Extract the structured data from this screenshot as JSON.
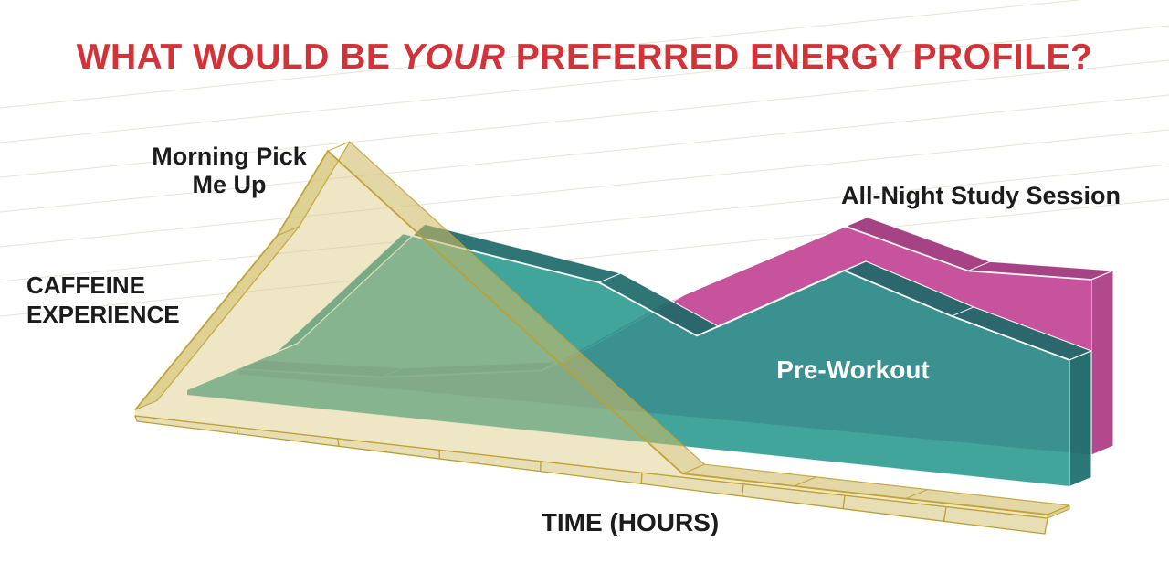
{
  "title": {
    "pre": "WHAT WOULD BE ",
    "emphasis": "YOUR",
    "post": " PREFERRED ENERGY PROFILE?",
    "color": "#d23338"
  },
  "labels": {
    "y_axis": {
      "line1": "CAFFEINE",
      "line2": "EXPERIENCE"
    },
    "x_axis": "TIME (HOURS)",
    "series_morning": {
      "line1": "Morning Pick",
      "line2": "Me Up"
    },
    "series_preworkout": "Pre-Workout",
    "series_allnight": "All-Night Study Session"
  },
  "chart_data": {
    "type": "area",
    "style": "3d-ribbon",
    "title": "WHAT WOULD BE YOUR PREFERRED ENERGY PROFILE?",
    "xlabel": "TIME (HOURS)",
    "ylabel": "CAFFEINE EXPERIENCE",
    "x_unit": "hours",
    "x_range": [
      0,
      9
    ],
    "y_range": [
      0,
      1
    ],
    "x_tick_labels_shown": false,
    "y_tick_labels_shown": false,
    "grid": "faint back-wall lines",
    "legend_position": "labels-on-chart",
    "floor": {
      "fill": "rgba(213,194,120,0.55)",
      "stroke": "#bda02f",
      "ticks": [
        1,
        2,
        3,
        4,
        5,
        6,
        7,
        8
      ]
    },
    "series": [
      {
        "name": "Morning Pick Me Up",
        "depth": 0,
        "colors": {
          "front": "rgba(218,200,126,0.45)",
          "top": "rgba(207,186,102,0.58)",
          "cap": "rgba(201,179,94,0.65)",
          "stroke": "#bda02f"
        },
        "points": [
          [
            0,
            0.02
          ],
          [
            1.4,
            0.65
          ],
          [
            1.9,
            0.95
          ],
          [
            4.2,
            0.33
          ],
          [
            5.4,
            0.012
          ],
          [
            6.5,
            0.012
          ],
          [
            7.6,
            0.012
          ],
          [
            9,
            0.012
          ]
        ]
      },
      {
        "name": "Pre-Workout",
        "depth": 1,
        "colors": {
          "front": "rgba(40,152,142,0.88)",
          "top": "rgba(30,105,106,0.92)",
          "cap": "rgba(31,112,110,0.95)",
          "stroke": "#ffffff"
        },
        "points": [
          [
            0,
            0.02
          ],
          [
            0.9,
            0.18
          ],
          [
            2.2,
            0.64
          ],
          [
            4.2,
            0.54
          ],
          [
            5.2,
            0.39
          ],
          [
            6.7,
            0.67
          ],
          [
            7.8,
            0.55
          ],
          [
            9,
            0.44
          ]
        ]
      },
      {
        "name": "All-Night Study Session",
        "depth": 2,
        "colors": {
          "front": "#c7539c",
          "top": "#a54384",
          "cap": "#b1498c",
          "stroke": "#ffffff"
        },
        "points": [
          [
            0,
            0.02
          ],
          [
            1.5,
            0.04
          ],
          [
            3.2,
            0.12
          ],
          [
            4.5,
            0.41
          ],
          [
            6.4,
            0.75
          ],
          [
            7.7,
            0.63
          ],
          [
            9,
            0.64
          ]
        ]
      }
    ]
  }
}
